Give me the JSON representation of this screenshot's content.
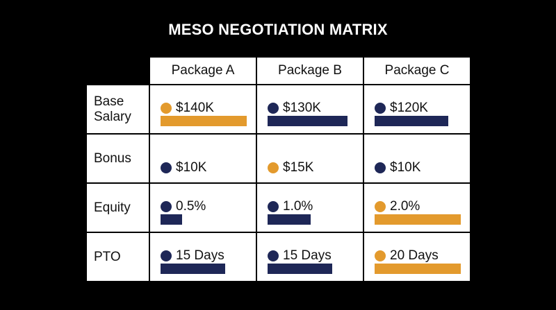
{
  "title": "MESO NEGOTIATION MATRIX",
  "colors": {
    "best": "#e39a2d",
    "other": "#1e2757"
  },
  "columns": [
    "Package A",
    "Package B",
    "Package C"
  ],
  "rows": [
    {
      "label": "Base Salary",
      "bars": true,
      "cells": [
        {
          "value": 140000,
          "value_label": "$140K",
          "best": true
        },
        {
          "value": 130000,
          "value_label": "$130K",
          "best": false
        },
        {
          "value": 120000,
          "value_label": "$120K",
          "best": false
        }
      ]
    },
    {
      "label": "Bonus",
      "bars": false,
      "cells": [
        {
          "value": 10000,
          "value_label": "$10K",
          "best": false
        },
        {
          "value": 15000,
          "value_label": "$15K",
          "best": true
        },
        {
          "value": 10000,
          "value_label": "$10K",
          "best": false
        }
      ]
    },
    {
      "label": "Equity",
      "bars": true,
      "cells": [
        {
          "value": 0.5,
          "value_label": "0.5%",
          "best": false
        },
        {
          "value": 1.0,
          "value_label": "1.0%",
          "best": false
        },
        {
          "value": 2.0,
          "value_label": "2.0%",
          "best": true
        }
      ]
    },
    {
      "label": "PTO",
      "bars": true,
      "cells": [
        {
          "value": 15,
          "value_label": "15 Days",
          "best": false
        },
        {
          "value": 15,
          "value_label": "15 Days",
          "best": false
        },
        {
          "value": 20,
          "value_label": "20 Days",
          "best": true
        }
      ]
    }
  ]
}
